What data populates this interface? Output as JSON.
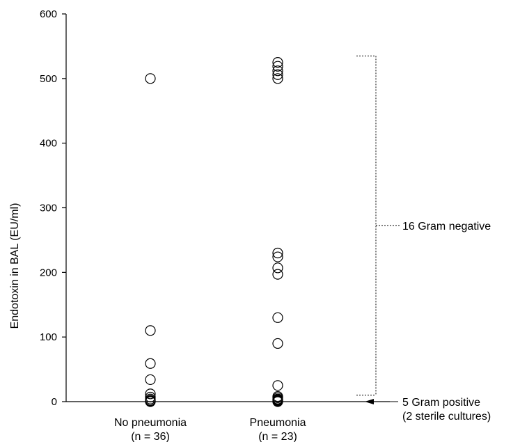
{
  "chart_data": {
    "type": "scatter",
    "ylabel": "Endotoxin in BAL (EU/ml)",
    "ylim": [
      0,
      600
    ],
    "yticks": [
      0,
      100,
      200,
      300,
      400,
      500,
      600
    ],
    "grid": false,
    "categories": [
      {
        "label": "No pneumonia",
        "sublabel": "(n = 36)"
      },
      {
        "label": "Pneumonia",
        "sublabel": "(n = 23)"
      }
    ],
    "series": [
      {
        "category": "No pneumonia",
        "values": [
          500,
          110,
          59,
          34,
          12,
          7,
          4,
          2,
          1,
          0
        ]
      },
      {
        "category": "Pneumonia",
        "values": [
          525,
          519,
          512,
          506,
          500,
          230,
          224,
          207,
          197,
          130,
          90,
          25,
          8,
          6,
          4,
          3,
          2,
          1,
          0
        ]
      }
    ],
    "annotations": {
      "gram_negative": {
        "text": "16 Gram negative",
        "range": [
          10,
          535
        ]
      },
      "gram_positive": {
        "line1": "5 Gram positive",
        "line2": "(2 sterile cultures)",
        "value": 0
      }
    }
  }
}
